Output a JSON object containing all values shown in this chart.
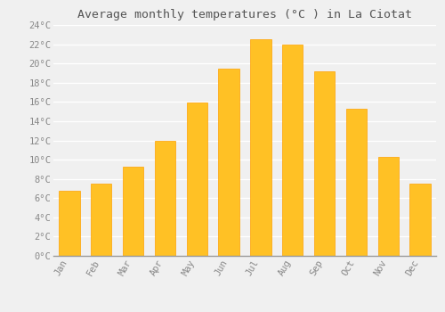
{
  "title": "Average monthly temperatures (°C ) in La Ciotat",
  "months": [
    "Jan",
    "Feb",
    "Mar",
    "Apr",
    "May",
    "Jun",
    "Jul",
    "Aug",
    "Sep",
    "Oct",
    "Nov",
    "Dec"
  ],
  "values": [
    6.8,
    7.5,
    9.3,
    12.0,
    15.9,
    19.5,
    22.5,
    22.0,
    19.2,
    15.3,
    10.3,
    7.5
  ],
  "bar_color_main": "#FFC125",
  "bar_color_edge": "#FFA000",
  "ylim": [
    0,
    24
  ],
  "ytick_step": 2,
  "background_color": "#f0f0f0",
  "grid_color": "#ffffff",
  "title_fontsize": 9.5,
  "tick_fontsize": 7.5,
  "font_family": "monospace",
  "bar_width": 0.65
}
